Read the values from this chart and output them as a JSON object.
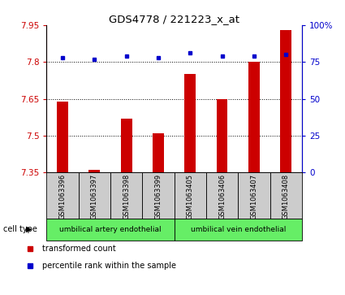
{
  "title": "GDS4778 / 221223_x_at",
  "samples": [
    "GSM1063396",
    "GSM1063397",
    "GSM1063398",
    "GSM1063399",
    "GSM1063405",
    "GSM1063406",
    "GSM1063407",
    "GSM1063408"
  ],
  "transformed_counts": [
    7.64,
    7.36,
    7.57,
    7.51,
    7.75,
    7.65,
    7.8,
    7.93
  ],
  "percentile_ranks": [
    78,
    77,
    79,
    78,
    81,
    79,
    79,
    80
  ],
  "ylim_left": [
    7.35,
    7.95
  ],
  "ylim_right": [
    0,
    100
  ],
  "yticks_left": [
    7.35,
    7.5,
    7.65,
    7.8,
    7.95
  ],
  "yticks_right": [
    0,
    25,
    50,
    75,
    100
  ],
  "ytick_labels_right": [
    "0",
    "25",
    "50",
    "75",
    "100%"
  ],
  "bar_color": "#cc0000",
  "dot_color": "#0000cc",
  "bar_bottom": 7.35,
  "grid_lines": [
    7.5,
    7.65,
    7.8
  ],
  "cell_type_groups": [
    {
      "label": "umbilical artery endothelial",
      "start": 0,
      "end": 3,
      "color": "#66ee66"
    },
    {
      "label": "umbilical vein endothelial",
      "start": 4,
      "end": 7,
      "color": "#66ee66"
    }
  ],
  "legend_items": [
    {
      "label": "transformed count",
      "color": "#cc0000"
    },
    {
      "label": "percentile rank within the sample",
      "color": "#0000cc"
    }
  ],
  "cell_type_label": "cell type",
  "tick_color_left": "#cc0000",
  "tick_color_right": "#0000cc",
  "label_box_color": "#cccccc",
  "plot_bg": "#ffffff"
}
